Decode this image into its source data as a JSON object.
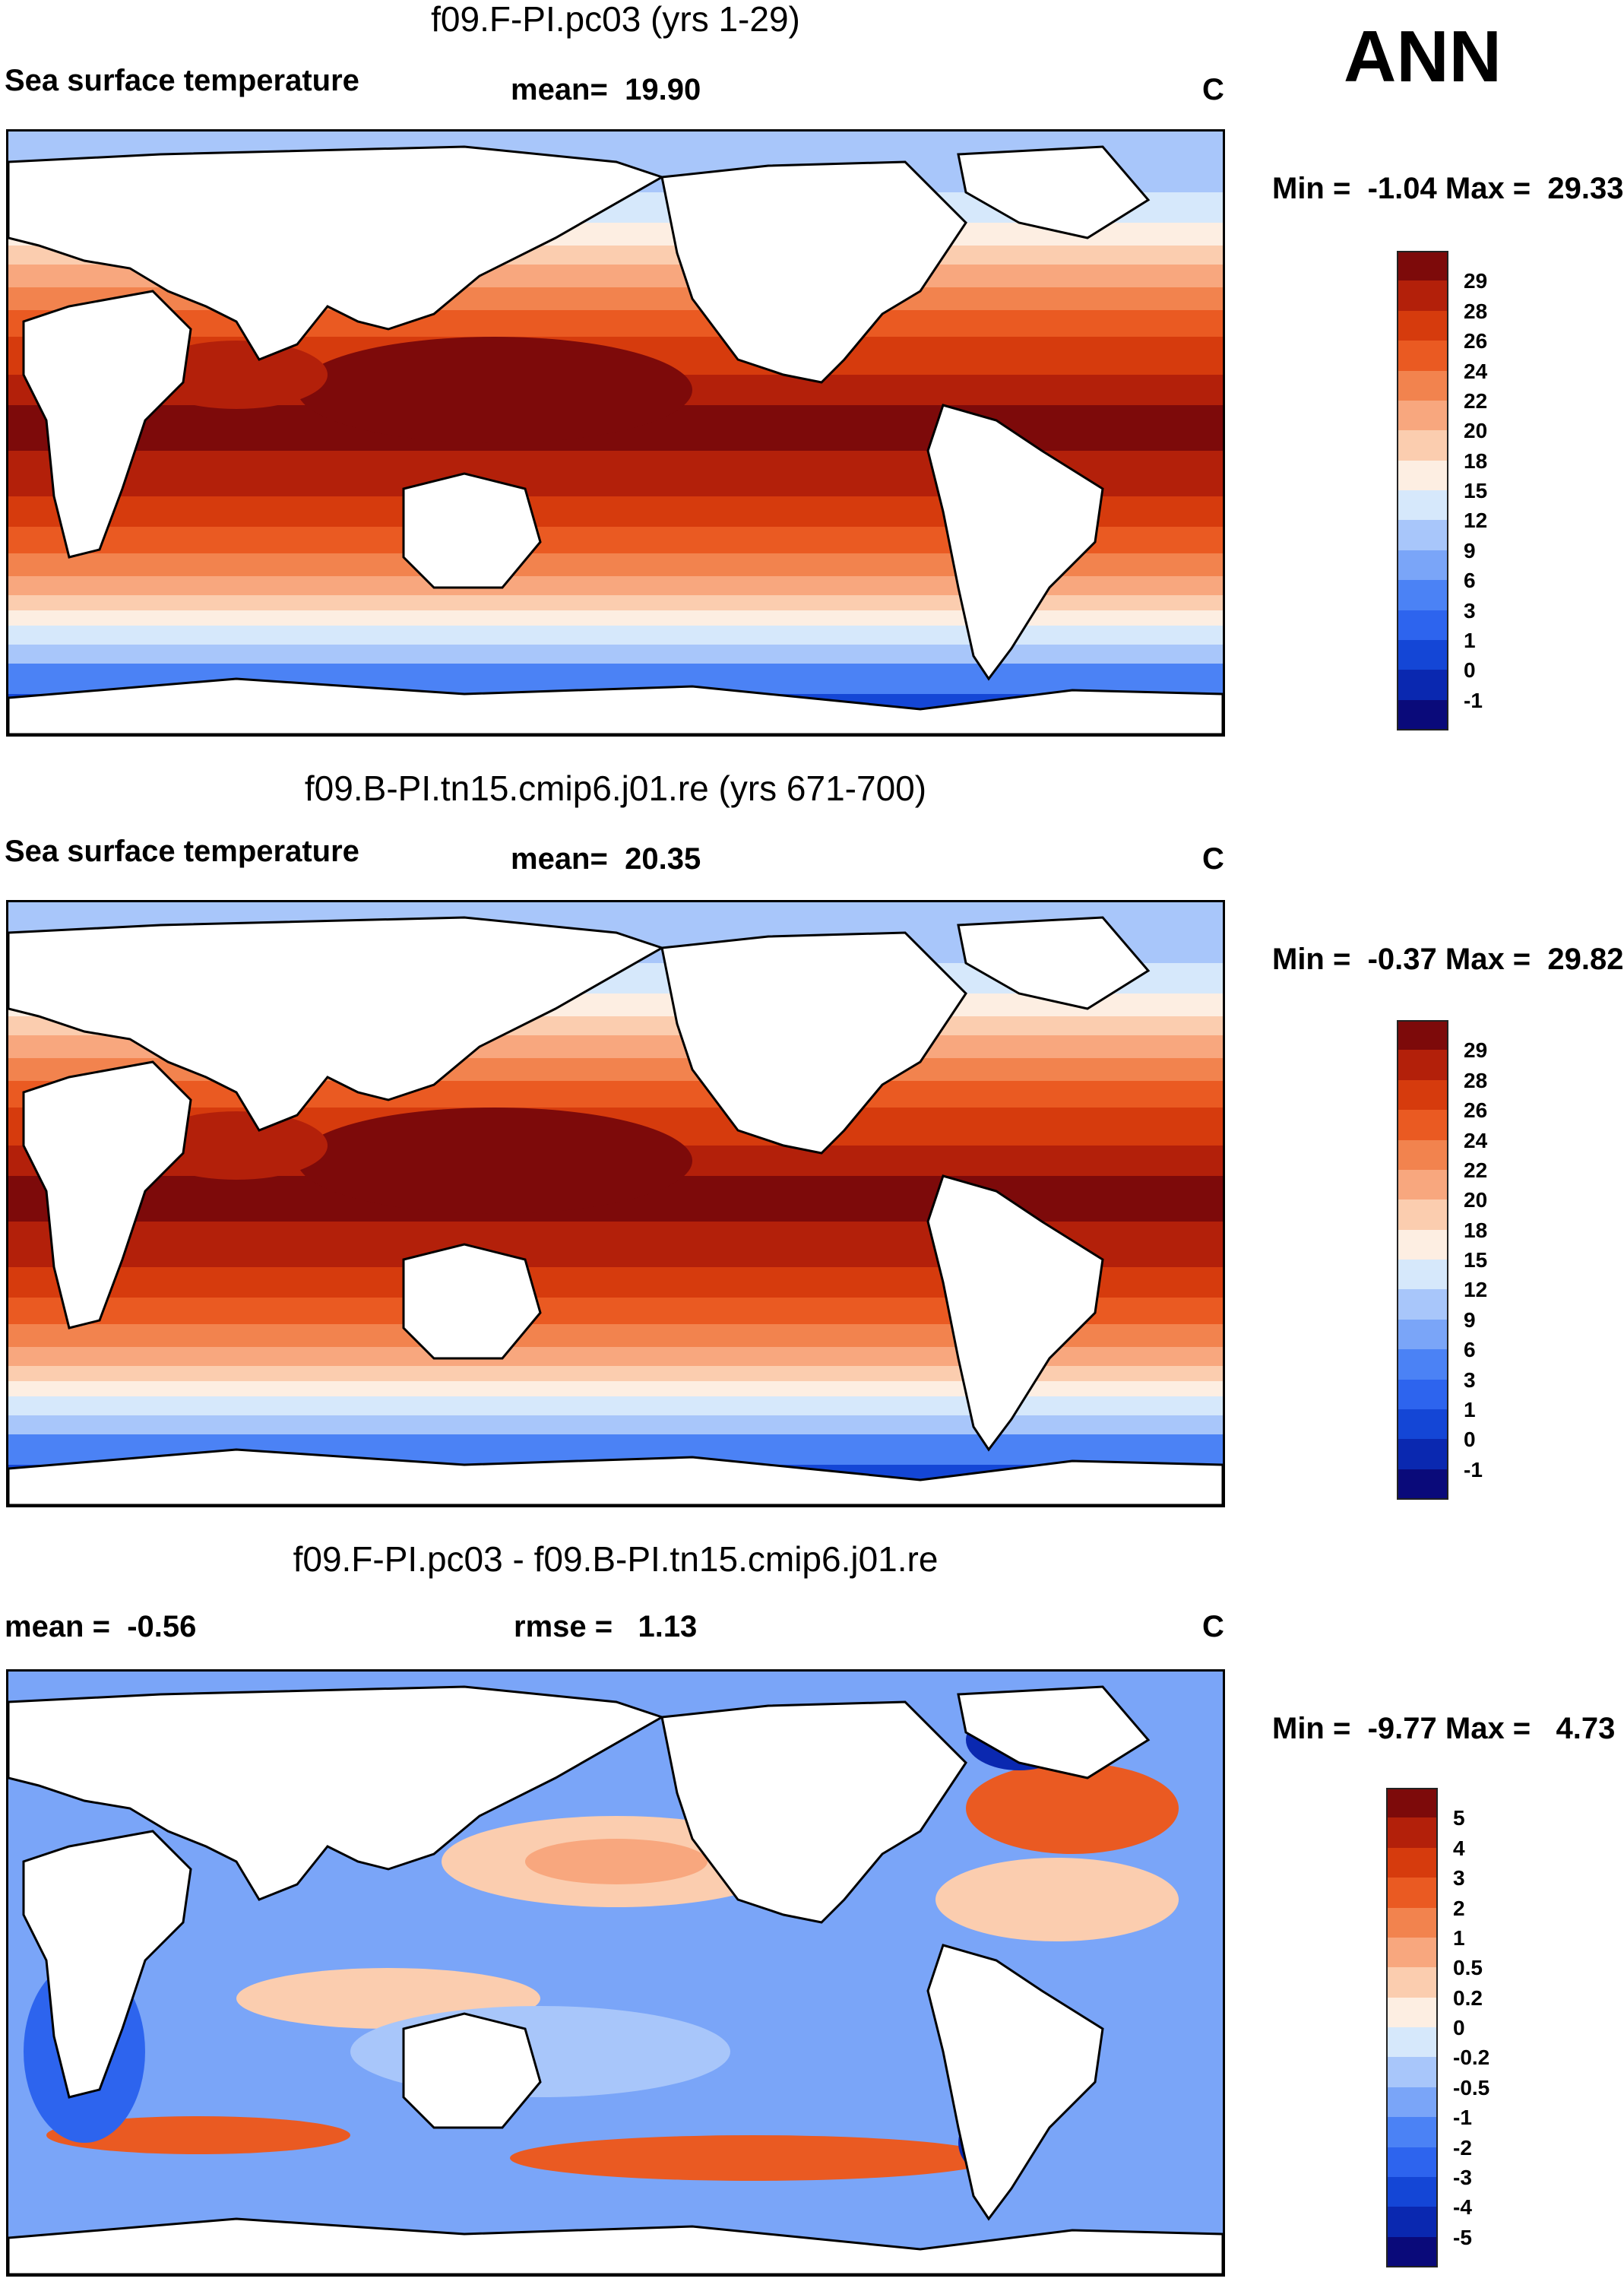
{
  "chart_data": [
    {
      "type": "heatmap",
      "title": "f09.F-PI.pc03 (yrs 1-29)",
      "variable": "Sea surface temperature",
      "mean_label": "mean=",
      "mean": "19.90",
      "units": "C",
      "min_label": "Min =",
      "min": "-1.04",
      "max_label": "Max =",
      "max": "29.33",
      "levels": [
        "-1",
        "0",
        "1",
        "3",
        "6",
        "9",
        "12",
        "15",
        "18",
        "20",
        "22",
        "24",
        "26",
        "28",
        "29"
      ],
      "colors": [
        "#0a0a7a",
        "#0a28b0",
        "#1446d6",
        "#2d64ee",
        "#4b82f5",
        "#7aa5f8",
        "#a8c6fa",
        "#d6e8fb",
        "#fdeee2",
        "#fbcdaf",
        "#f8a77e",
        "#f2834e",
        "#ea5a22",
        "#d63b0d",
        "#b3200a",
        "#7d0a0a"
      ]
    },
    {
      "type": "heatmap",
      "title": "f09.B-PI.tn15.cmip6.j01.re (yrs 671-700)",
      "variable": "Sea surface temperature",
      "mean_label": "mean=",
      "mean": "20.35",
      "units": "C",
      "min_label": "Min =",
      "min": "-0.37",
      "max_label": "Max =",
      "max": "29.82",
      "levels": [
        "-1",
        "0",
        "1",
        "3",
        "6",
        "9",
        "12",
        "15",
        "18",
        "20",
        "22",
        "24",
        "26",
        "28",
        "29"
      ],
      "colors": [
        "#0a0a7a",
        "#0a28b0",
        "#1446d6",
        "#2d64ee",
        "#4b82f5",
        "#7aa5f8",
        "#a8c6fa",
        "#d6e8fb",
        "#fdeee2",
        "#fbcdaf",
        "#f8a77e",
        "#f2834e",
        "#ea5a22",
        "#d63b0d",
        "#b3200a",
        "#7d0a0a"
      ]
    },
    {
      "type": "heatmap",
      "title": "f09.F-PI.pc03 - f09.B-PI.tn15.cmip6.j01.re",
      "mean_label": "mean =",
      "mean": "-0.56",
      "rmse_label": "rmse =",
      "rmse": "1.13",
      "units": "C",
      "min_label": "Min =",
      "min": "-9.77",
      "max_label": "Max =",
      "max": "4.73",
      "levels": [
        "-5",
        "-4",
        "-3",
        "-2",
        "-1",
        "-0.5",
        "-0.2",
        "0",
        "0.2",
        "0.5",
        "1",
        "2",
        "3",
        "4",
        "5"
      ],
      "colors": [
        "#0a0a7a",
        "#0a28b0",
        "#1446d6",
        "#2d64ee",
        "#4b82f5",
        "#7aa5f8",
        "#a8c6fa",
        "#d6e8fb",
        "#fdeee2",
        "#fbcdaf",
        "#f8a77e",
        "#f2834e",
        "#ea5a22",
        "#d63b0d",
        "#b3200a",
        "#7d0a0a"
      ]
    }
  ],
  "season": "ANN"
}
